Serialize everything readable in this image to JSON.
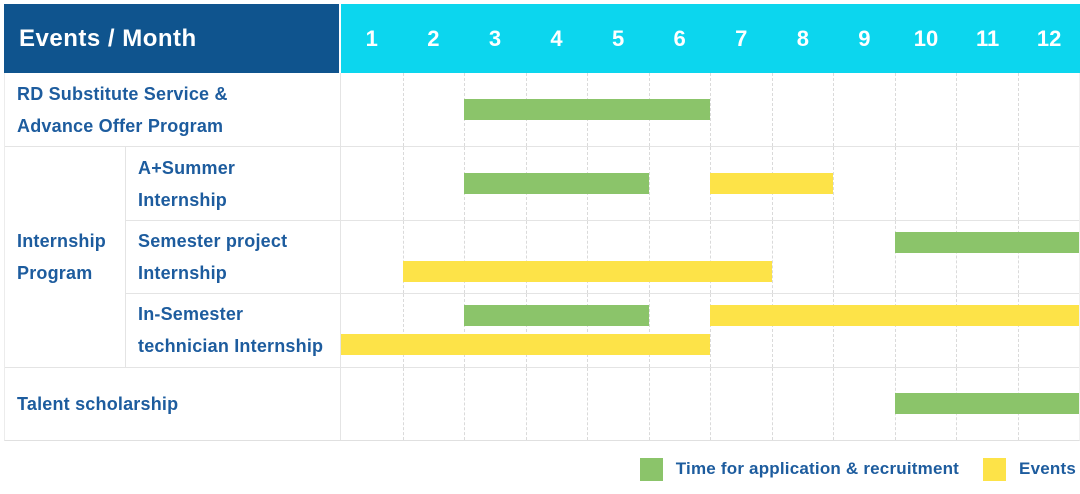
{
  "header": {
    "title": "Events / Month"
  },
  "colors": {
    "header_bg": "#0f548e",
    "months_bg": "#0cd6ee",
    "label_text": "#1d5c9e",
    "green": "#8bc46a",
    "yellow": "#fde348",
    "grid_solid": "#e4e4e4",
    "grid_dashed": "#dadada"
  },
  "chart_data": {
    "type": "table",
    "subtype": "gantt-timeline",
    "title": "Events / Month",
    "x_axis_label": "Month",
    "x_categories": [
      "1",
      "2",
      "3",
      "4",
      "5",
      "6",
      "7",
      "8",
      "9",
      "10",
      "11",
      "12"
    ],
    "x_range": [
      1,
      12
    ],
    "grid": "dashed-vertical-month-lines",
    "legend_position": "bottom-right",
    "legend": [
      {
        "key": "application",
        "label": "Time for application & recruitment",
        "color": "#8bc46a"
      },
      {
        "key": "events",
        "label": "Events",
        "color": "#fde348"
      }
    ],
    "group_label": "Internship\nProgram",
    "group_rows": [
      2,
      4
    ],
    "rows": [
      {
        "id": "rd-substitute-service",
        "group": "",
        "label": "RD Substitute Service &\nAdvance Offer Program",
        "full_width_label": true,
        "lanes": [
          [
            {
              "series": "application",
              "start_month": 3,
              "end_month": 6
            }
          ]
        ]
      },
      {
        "id": "a-plus-summer-internship",
        "group": "Internship Program",
        "label": "A+Summer\nInternship",
        "full_width_label": false,
        "lanes": [
          [
            {
              "series": "application",
              "start_month": 3,
              "end_month": 5
            },
            {
              "series": "events",
              "start_month": 7,
              "end_month": 8
            }
          ]
        ]
      },
      {
        "id": "semester-project-internship",
        "group": "Internship Program",
        "label": "Semester project\nInternship",
        "full_width_label": false,
        "lanes": [
          [
            {
              "series": "application",
              "start_month": 10,
              "end_month": 12
            }
          ],
          [
            {
              "series": "events",
              "start_month": 2,
              "end_month": 7
            }
          ]
        ]
      },
      {
        "id": "in-semester-technician-internship",
        "group": "Internship Program",
        "label": "In-Semester\ntechnician Internship",
        "full_width_label": false,
        "lanes": [
          [
            {
              "series": "application",
              "start_month": 3,
              "end_month": 5
            },
            {
              "series": "events",
              "start_month": 7,
              "end_month": 12
            }
          ],
          [
            {
              "series": "events",
              "start_month": 1,
              "end_month": 6
            }
          ]
        ]
      },
      {
        "id": "talent-scholarship",
        "group": "",
        "label": "Talent scholarship",
        "full_width_label": true,
        "lanes": [
          [
            {
              "series": "application",
              "start_month": 10,
              "end_month": 12
            }
          ]
        ]
      }
    ]
  }
}
